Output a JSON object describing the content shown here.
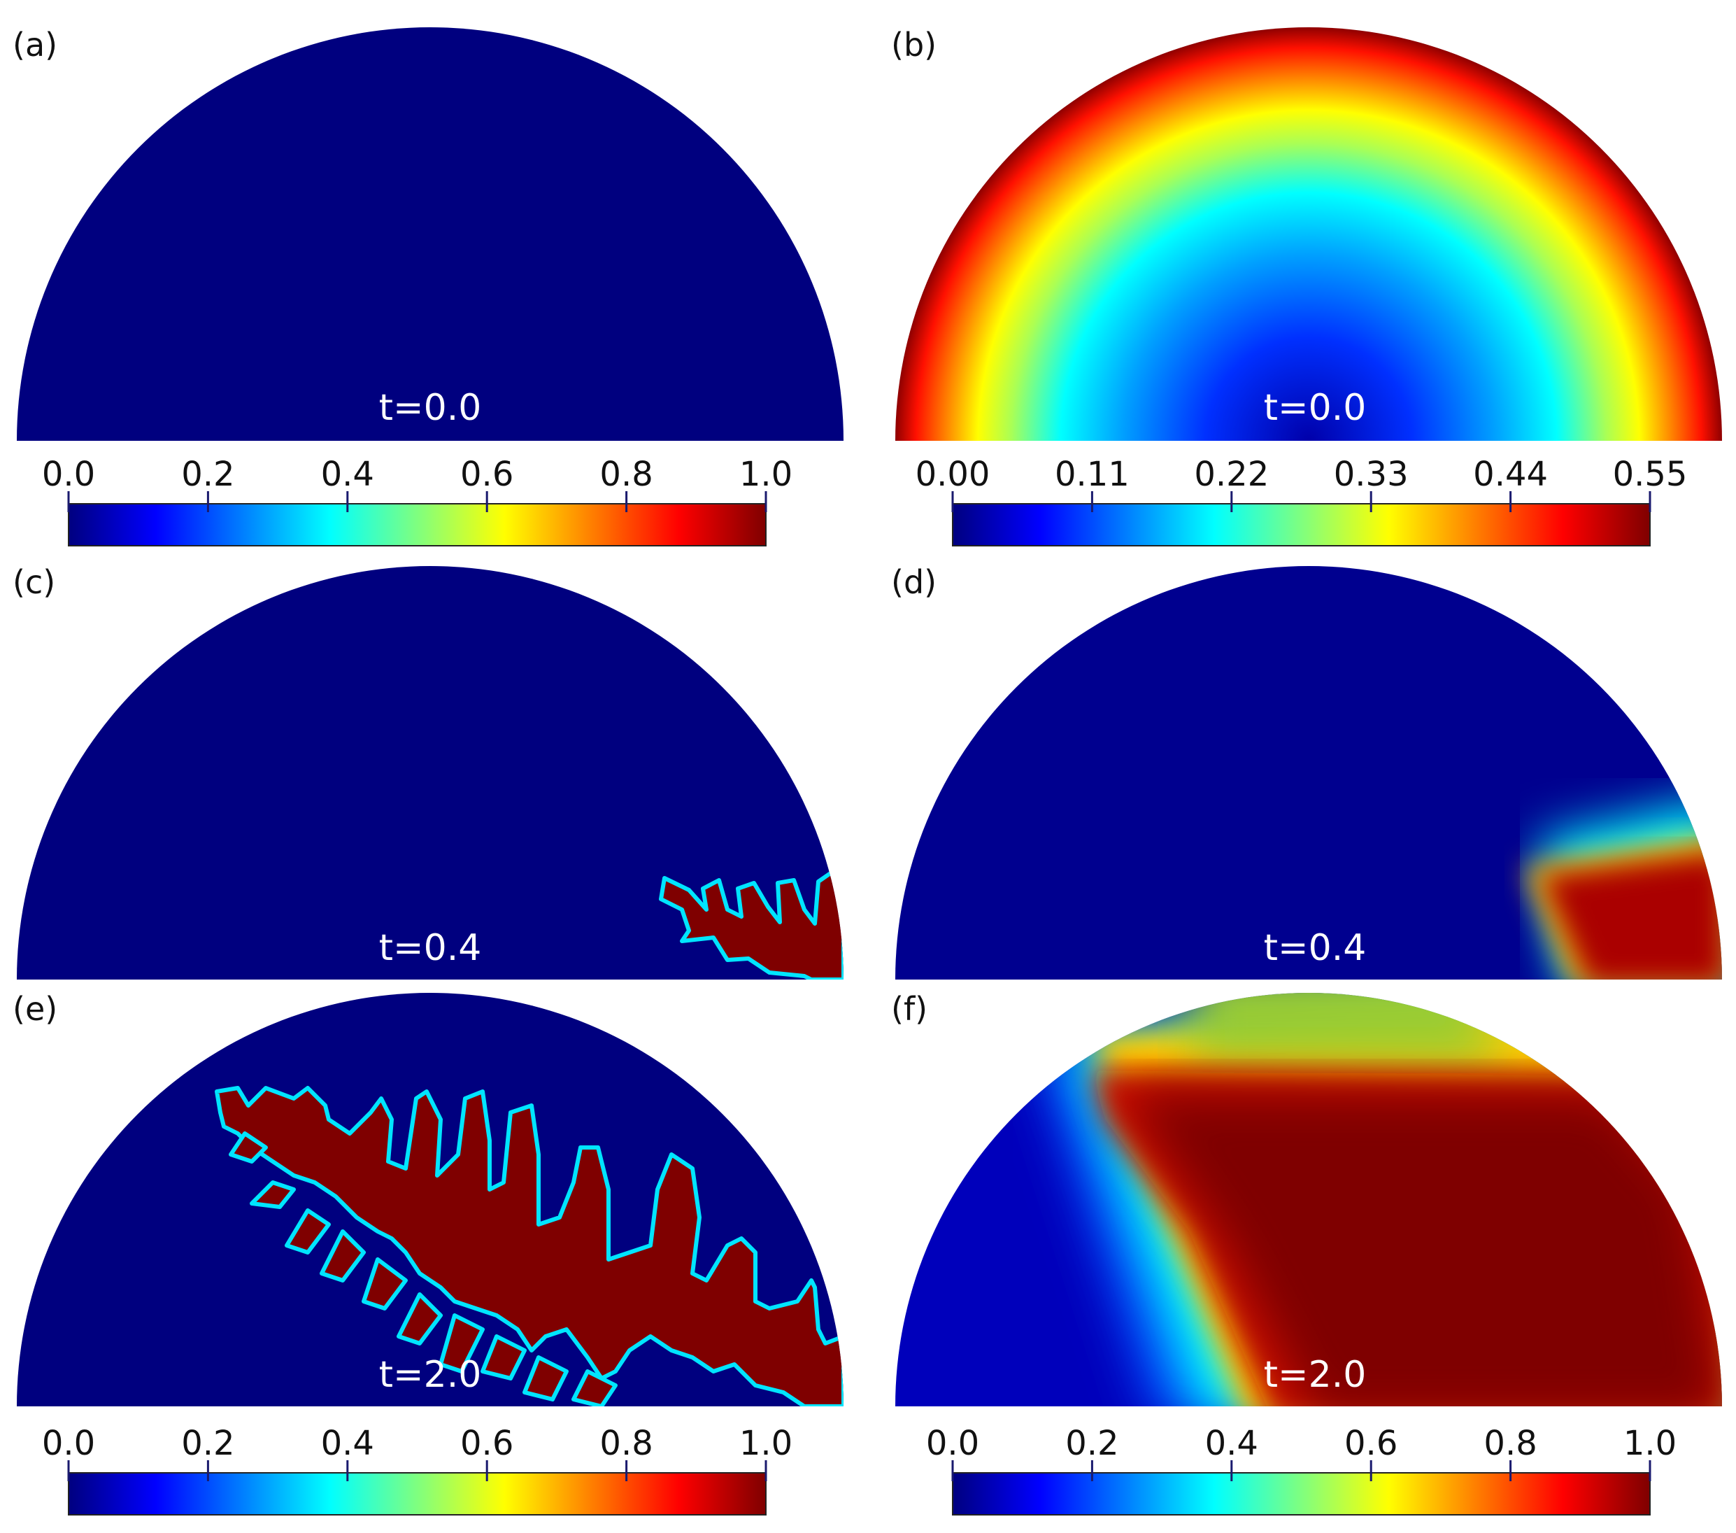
{
  "colormap": [
    "#00007f",
    "#0000ff",
    "#007fff",
    "#00ffff",
    "#7fff7f",
    "#ffff00",
    "#ff7f00",
    "#ff0000",
    "#7f0000"
  ],
  "panels": [
    {
      "label": "(a)",
      "time": "t=0.0",
      "field": "uniform_low"
    },
    {
      "label": "(b)",
      "time": "t=0.0",
      "field": "radial"
    },
    {
      "label": "(c)",
      "time": "t=0.4",
      "field": "dendrite_small"
    },
    {
      "label": "(d)",
      "time": "t=0.4",
      "field": "temperature_small"
    },
    {
      "label": "(e)",
      "time": "t=2.0",
      "field": "dendrite_large"
    },
    {
      "label": "(f)",
      "time": "t=2.0",
      "field": "temperature_large"
    }
  ],
  "colorbars": [
    {
      "ticks": [
        "0.0",
        "0.2",
        "0.4",
        "0.6",
        "0.8",
        "1.0"
      ]
    },
    {
      "ticks": [
        "0.00",
        "0.11",
        "0.22",
        "0.33",
        "0.44",
        "0.55"
      ]
    },
    {
      "ticks": [
        "0.0",
        "0.2",
        "0.4",
        "0.6",
        "0.8",
        "1.0"
      ]
    },
    {
      "ticks": [
        "0.0",
        "0.2",
        "0.4",
        "0.6",
        "0.8",
        "1.0"
      ]
    }
  ]
}
